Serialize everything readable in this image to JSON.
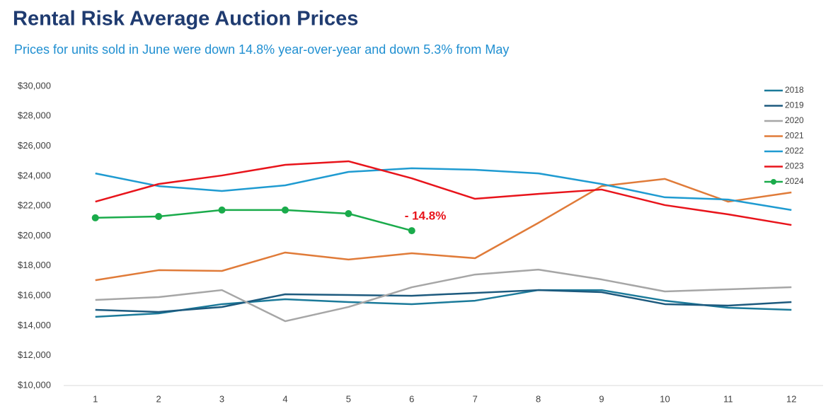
{
  "chart_data": {
    "type": "line",
    "title": "Rental Risk Average Auction Prices",
    "subtitle": "Prices for units sold in June were down 14.8% year-over-year and down 5.3% from May",
    "annotation": "- 14.8%",
    "categories": [
      "1",
      "2",
      "3",
      "4",
      "5",
      "6",
      "7",
      "8",
      "9",
      "10",
      "11",
      "12"
    ],
    "series": [
      {
        "name": "2018",
        "color": "#1b7a9a",
        "values": [
          14590,
          14820,
          15440,
          15770,
          15580,
          15440,
          15670,
          16380,
          16380,
          15670,
          15200,
          15060
        ]
      },
      {
        "name": "2019",
        "color": "#1d5a7e",
        "values": [
          15060,
          14920,
          15250,
          16100,
          16050,
          16000,
          16190,
          16380,
          16240,
          15440,
          15340,
          15580
        ]
      },
      {
        "name": "2020",
        "color": "#a6a6a6",
        "values": [
          15720,
          15910,
          16380,
          14300,
          15250,
          16570,
          17420,
          17750,
          17090,
          16290,
          16430,
          16570
        ]
      },
      {
        "name": "2021",
        "color": "#e07b39",
        "values": [
          17040,
          17710,
          17660,
          18890,
          18420,
          18840,
          18510,
          20870,
          23330,
          23810,
          22290,
          22910
        ]
      },
      {
        "name": "2022",
        "color": "#1f9bd1",
        "values": [
          24180,
          23330,
          23000,
          23380,
          24280,
          24520,
          24420,
          24180,
          23470,
          22580,
          22430,
          21730
        ]
      },
      {
        "name": "2023",
        "color": "#e8141b",
        "values": [
          22290,
          23470,
          24040,
          24750,
          24990,
          23850,
          22480,
          22810,
          23100,
          22060,
          21440,
          20730
        ]
      },
      {
        "name": "2024",
        "color": "#1aab4b",
        "markers": true,
        "values": [
          21210,
          21300,
          21730,
          21730,
          21490,
          20350,
          null,
          null,
          null,
          null,
          null,
          null
        ]
      }
    ],
    "ylim": [
      10000,
      30000
    ],
    "yticks": [
      {
        "value": 10000,
        "label": "$10,000"
      },
      {
        "value": 12000,
        "label": "$12,000"
      },
      {
        "value": 14000,
        "label": "$14,000"
      },
      {
        "value": 16000,
        "label": "$16,000"
      },
      {
        "value": 18000,
        "label": "$18,000"
      },
      {
        "value": 20000,
        "label": "$20,000"
      },
      {
        "value": 22000,
        "label": "$22,000"
      },
      {
        "value": 24000,
        "label": "$24,000"
      },
      {
        "value": 26000,
        "label": "$26,000"
      },
      {
        "value": 28000,
        "label": "$28,000"
      },
      {
        "value": 30000,
        "label": "$30,000"
      }
    ],
    "grid": false,
    "legend": "upper right",
    "annotation_color": "#e8141b"
  }
}
